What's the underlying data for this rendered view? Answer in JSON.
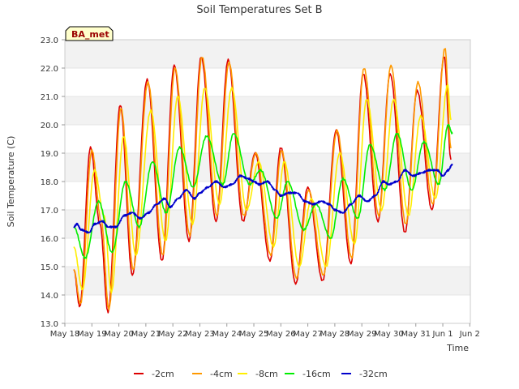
{
  "chart_data": {
    "type": "line",
    "title": "Soil Temperatures Set B",
    "xlabel": "Time",
    "ylabel": "Soil Temperature (C)",
    "annotation": "BA_met",
    "ylim": [
      13.0,
      23.0
    ],
    "xlim": [
      0,
      16
    ],
    "y_ticks": [
      "13.0",
      "14.0",
      "15.0",
      "16.0",
      "17.0",
      "18.0",
      "19.0",
      "20.0",
      "21.0",
      "22.0",
      "23.0"
    ],
    "x_ticks": [
      {
        "x": 0,
        "label": "May 18"
      },
      {
        "x": 1,
        "label": "May 19"
      },
      {
        "x": 2,
        "label": "May 20"
      },
      {
        "x": 3,
        "label": "May 21"
      },
      {
        "x": 4,
        "label": "May 22"
      },
      {
        "x": 5,
        "label": "May 23"
      },
      {
        "x": 6,
        "label": "May 24"
      },
      {
        "x": 7,
        "label": "May 25"
      },
      {
        "x": 8,
        "label": "May 26"
      },
      {
        "x": 9,
        "label": "May 27"
      },
      {
        "x": 10,
        "label": "May 28"
      },
      {
        "x": 11,
        "label": "May 29"
      },
      {
        "x": 12,
        "label": "May 30"
      },
      {
        "x": 13,
        "label": "May 31"
      },
      {
        "x": 14,
        "label": "Jun 1"
      },
      {
        "x": 15,
        "label": "Jun 2"
      }
    ],
    "grid": "horizontal bands",
    "legend_position": "bottom",
    "series": [
      {
        "name": "-2cm",
        "color": "#dd0000",
        "points": [
          [
            0.33,
            14.9
          ],
          [
            0.55,
            13.6
          ],
          [
            0.95,
            19.2
          ],
          [
            1.3,
            16.5
          ],
          [
            1.6,
            13.4
          ],
          [
            2.05,
            20.7
          ],
          [
            2.5,
            14.7
          ],
          [
            3.05,
            21.6
          ],
          [
            3.6,
            15.2
          ],
          [
            4.05,
            22.1
          ],
          [
            4.6,
            15.9
          ],
          [
            5.05,
            22.4
          ],
          [
            5.6,
            16.6
          ],
          [
            6.05,
            22.3
          ],
          [
            6.6,
            16.6
          ],
          [
            7.05,
            19.0
          ],
          [
            7.6,
            15.2
          ],
          [
            8.0,
            19.2
          ],
          [
            8.55,
            14.4
          ],
          [
            9.0,
            17.8
          ],
          [
            9.55,
            14.5
          ],
          [
            10.05,
            19.8
          ],
          [
            10.6,
            15.1
          ],
          [
            11.05,
            21.8
          ],
          [
            11.6,
            16.6
          ],
          [
            12.05,
            21.8
          ],
          [
            12.6,
            16.2
          ],
          [
            13.05,
            21.2
          ],
          [
            13.6,
            17.0
          ],
          [
            14.05,
            22.4
          ],
          [
            14.3,
            18.8
          ]
        ]
      },
      {
        "name": "-4cm",
        "color": "#ff9900",
        "points": [
          [
            0.33,
            14.9
          ],
          [
            0.58,
            13.7
          ],
          [
            1.0,
            19.1
          ],
          [
            1.35,
            16.6
          ],
          [
            1.63,
            13.5
          ],
          [
            2.08,
            20.6
          ],
          [
            2.53,
            14.9
          ],
          [
            3.08,
            21.5
          ],
          [
            3.63,
            15.4
          ],
          [
            4.08,
            22.0
          ],
          [
            4.63,
            16.1
          ],
          [
            5.08,
            22.4
          ],
          [
            5.63,
            16.8
          ],
          [
            6.08,
            22.2
          ],
          [
            6.63,
            16.8
          ],
          [
            7.08,
            19.0
          ],
          [
            7.63,
            15.4
          ],
          [
            8.03,
            19.1
          ],
          [
            8.58,
            14.6
          ],
          [
            9.03,
            17.7
          ],
          [
            9.58,
            14.7
          ],
          [
            10.08,
            19.8
          ],
          [
            10.63,
            15.3
          ],
          [
            11.08,
            22.0
          ],
          [
            11.63,
            16.8
          ],
          [
            12.08,
            22.1
          ],
          [
            12.63,
            16.5
          ],
          [
            13.08,
            21.5
          ],
          [
            13.63,
            17.2
          ],
          [
            14.08,
            22.7
          ],
          [
            14.3,
            19.2
          ]
        ]
      },
      {
        "name": "-8cm",
        "color": "#ffee00",
        "points": [
          [
            0.33,
            15.7
          ],
          [
            0.65,
            14.2
          ],
          [
            1.1,
            18.4
          ],
          [
            1.45,
            16.8
          ],
          [
            1.72,
            14.1
          ],
          [
            2.18,
            19.6
          ],
          [
            2.63,
            15.4
          ],
          [
            3.18,
            20.5
          ],
          [
            3.73,
            15.9
          ],
          [
            4.18,
            21.0
          ],
          [
            4.73,
            16.5
          ],
          [
            5.18,
            21.3
          ],
          [
            5.73,
            17.2
          ],
          [
            6.18,
            21.3
          ],
          [
            6.73,
            17.0
          ],
          [
            7.18,
            18.7
          ],
          [
            7.73,
            15.7
          ],
          [
            8.13,
            18.7
          ],
          [
            8.68,
            15.0
          ],
          [
            9.13,
            17.4
          ],
          [
            9.68,
            15.0
          ],
          [
            10.18,
            19.0
          ],
          [
            10.73,
            15.8
          ],
          [
            11.18,
            20.9
          ],
          [
            11.73,
            17.0
          ],
          [
            12.18,
            20.9
          ],
          [
            12.73,
            16.8
          ],
          [
            13.18,
            20.3
          ],
          [
            13.73,
            17.4
          ],
          [
            14.18,
            21.4
          ],
          [
            14.3,
            20.2
          ]
        ]
      },
      {
        "name": "-16cm",
        "color": "#00ee00",
        "points": [
          [
            0.33,
            16.4
          ],
          [
            0.75,
            15.3
          ],
          [
            1.25,
            17.3
          ],
          [
            1.75,
            15.5
          ],
          [
            2.25,
            18.0
          ],
          [
            2.75,
            16.4
          ],
          [
            3.25,
            18.7
          ],
          [
            3.75,
            16.9
          ],
          [
            4.25,
            19.2
          ],
          [
            4.75,
            17.8
          ],
          [
            5.25,
            19.6
          ],
          [
            5.85,
            17.9
          ],
          [
            6.25,
            19.7
          ],
          [
            6.85,
            17.9
          ],
          [
            7.25,
            18.4
          ],
          [
            7.85,
            16.7
          ],
          [
            8.25,
            18.0
          ],
          [
            8.85,
            16.3
          ],
          [
            9.3,
            17.2
          ],
          [
            9.85,
            16.0
          ],
          [
            10.3,
            18.1
          ],
          [
            10.85,
            16.7
          ],
          [
            11.3,
            19.3
          ],
          [
            11.85,
            17.7
          ],
          [
            12.3,
            19.7
          ],
          [
            12.85,
            17.7
          ],
          [
            13.3,
            19.4
          ],
          [
            13.85,
            17.9
          ],
          [
            14.2,
            20.0
          ],
          [
            14.35,
            19.7
          ]
        ]
      },
      {
        "name": "-32cm",
        "color": "#0000cc",
        "points": [
          [
            0.33,
            16.4
          ],
          [
            0.45,
            16.5
          ],
          [
            0.6,
            16.3
          ],
          [
            0.9,
            16.2
          ],
          [
            1.1,
            16.5
          ],
          [
            1.4,
            16.6
          ],
          [
            1.6,
            16.4
          ],
          [
            1.9,
            16.4
          ],
          [
            2.2,
            16.8
          ],
          [
            2.5,
            16.9
          ],
          [
            2.8,
            16.7
          ],
          [
            3.1,
            16.9
          ],
          [
            3.4,
            17.2
          ],
          [
            3.7,
            17.4
          ],
          [
            3.9,
            17.1
          ],
          [
            4.2,
            17.4
          ],
          [
            4.5,
            17.7
          ],
          [
            4.8,
            17.4
          ],
          [
            5.0,
            17.6
          ],
          [
            5.3,
            17.8
          ],
          [
            5.6,
            18.0
          ],
          [
            5.9,
            17.8
          ],
          [
            6.2,
            17.9
          ],
          [
            6.5,
            18.2
          ],
          [
            6.8,
            18.1
          ],
          [
            7.0,
            18.0
          ],
          [
            7.2,
            17.9
          ],
          [
            7.5,
            18.0
          ],
          [
            7.8,
            17.7
          ],
          [
            8.0,
            17.5
          ],
          [
            8.3,
            17.6
          ],
          [
            8.6,
            17.6
          ],
          [
            8.9,
            17.3
          ],
          [
            9.2,
            17.2
          ],
          [
            9.5,
            17.3
          ],
          [
            9.8,
            17.2
          ],
          [
            10.0,
            17.0
          ],
          [
            10.3,
            16.9
          ],
          [
            10.6,
            17.2
          ],
          [
            10.9,
            17.5
          ],
          [
            11.2,
            17.3
          ],
          [
            11.5,
            17.5
          ],
          [
            11.8,
            18.0
          ],
          [
            12.0,
            17.9
          ],
          [
            12.3,
            18.0
          ],
          [
            12.6,
            18.4
          ],
          [
            12.9,
            18.2
          ],
          [
            13.2,
            18.3
          ],
          [
            13.5,
            18.4
          ],
          [
            13.8,
            18.4
          ],
          [
            14.0,
            18.2
          ],
          [
            14.2,
            18.4
          ],
          [
            14.35,
            18.6
          ]
        ]
      }
    ]
  }
}
